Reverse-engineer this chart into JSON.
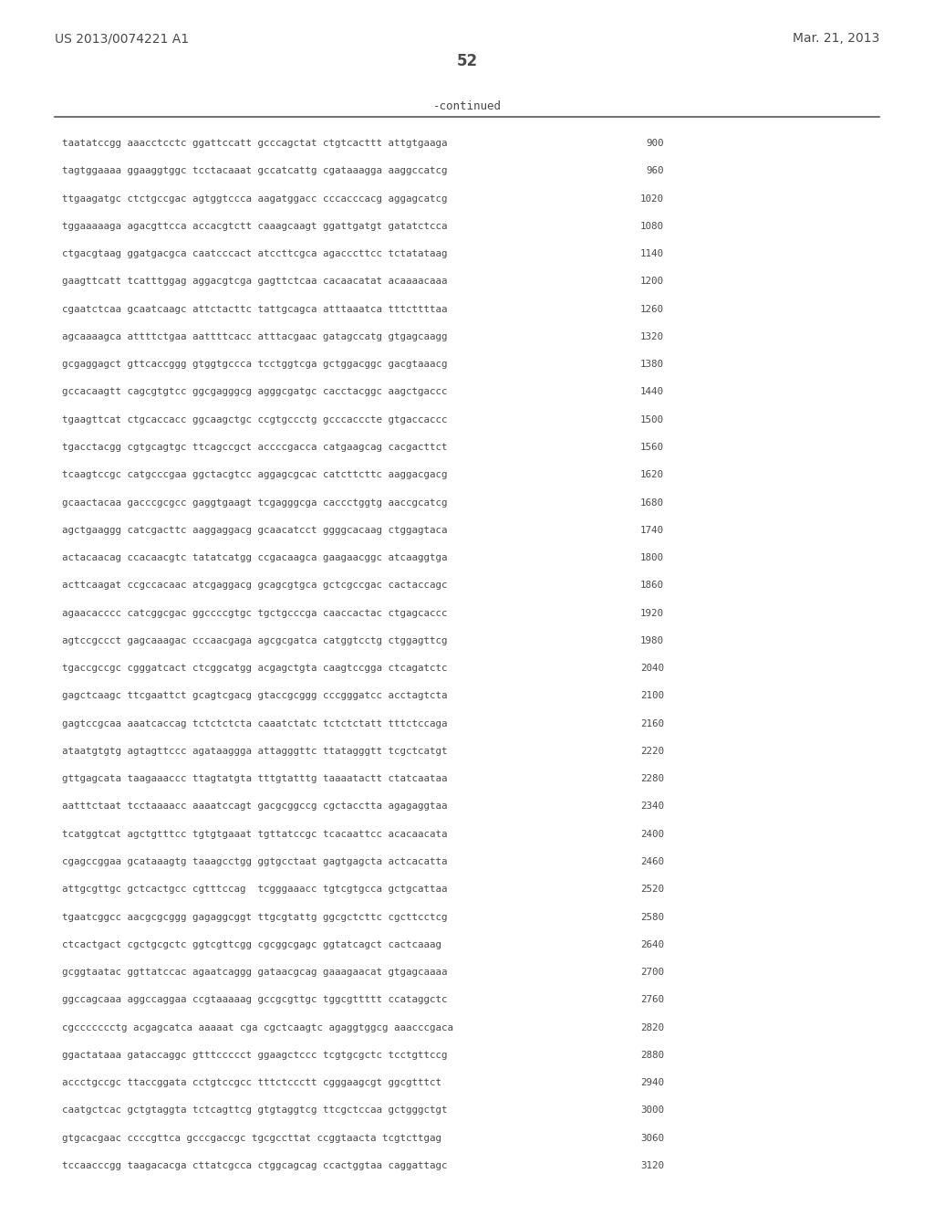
{
  "header_left": "US 2013/0074221 A1",
  "header_right": "Mar. 21, 2013",
  "page_number": "52",
  "continued_label": "-continued",
  "background_color": "#ffffff",
  "text_color": "#4a4a4a",
  "lines": [
    {
      "seq": "taatatccgg aaacctcctc ggattccatt gcccagctat ctgtcacttt attgtgaaga",
      "num": "900"
    },
    {
      "seq": "tagtggaaaa ggaaggtggc tcctacaaat gccatcattg cgataaagga aaggccatcg",
      "num": "960"
    },
    {
      "seq": "ttgaagatgc ctctgccgac agtggtccca aagatggacc cccacccacg aggagcatcg",
      "num": "1020"
    },
    {
      "seq": "tggaaaaaga agacgttcca accacgtctt caaagcaagt ggattgatgt gatatctcca",
      "num": "1080"
    },
    {
      "seq": "ctgacgtaag ggatgacgca caatcccact atccttcgca agacccttcc tctatataag",
      "num": "1140"
    },
    {
      "seq": "gaagttcatt tcatttggag aggacgtcga gagttctcaa cacaacatat acaaaacaaa",
      "num": "1200"
    },
    {
      "seq": "cgaatctcaa gcaatcaagc attctacttc tattgcagca atttaaatca tttcttttaa",
      "num": "1260"
    },
    {
      "seq": "agcaaaagca attttctgaa aattttcacc atttacgaac gatagccatg gtgagcaagg",
      "num": "1320"
    },
    {
      "seq": "gcgaggagct gttcaccggg gtggtgccca tcctggtcga gctggacggc gacgtaaacg",
      "num": "1380"
    },
    {
      "seq": "gccacaagtt cagcgtgtcc ggcgagggcg agggcgatgc cacctacggc aagctgaccc",
      "num": "1440"
    },
    {
      "seq": "tgaagttcat ctgcaccacc ggcaagctgc ccgtgccctg gcccacccte gtgaccaccc",
      "num": "1500"
    },
    {
      "seq": "tgacctacgg cgtgcagtgc ttcagccgct accccgacca catgaagcag cacgacttct",
      "num": "1560"
    },
    {
      "seq": "tcaagtccgc catgcccgaa ggctacgtcc aggagcgcac catcttcttc aaggacgacg",
      "num": "1620"
    },
    {
      "seq": "gcaactacaa gacccgcgcc gaggtgaagt tcgagggcga caccctggtg aaccgcatcg",
      "num": "1680"
    },
    {
      "seq": "agctgaaggg catcgacttc aaggaggacg gcaacatcct ggggcacaag ctggagtaca",
      "num": "1740"
    },
    {
      "seq": "actacaacag ccacaacgtc tatatcatgg ccgacaagca gaagaacggc atcaaggtga",
      "num": "1800"
    },
    {
      "seq": "acttcaagat ccgccacaac atcgaggacg gcagcgtgca gctcgccgac cactaccagc",
      "num": "1860"
    },
    {
      "seq": "agaacacccc catcggcgac ggccccgtgc tgctgcccga caaccactac ctgagcaccc",
      "num": "1920"
    },
    {
      "seq": "agtccgccct gagcaaagac cccaacgaga agcgcgatca catggtcctg ctggagttcg",
      "num": "1980"
    },
    {
      "seq": "tgaccgccgc cgggatcact ctcggcatgg acgagctgta caagtccgga ctcagatctc",
      "num": "2040"
    },
    {
      "seq": "gagctcaagc ttcgaattct gcagtcgacg gtaccgcggg cccgggatcc acctagtcta",
      "num": "2100"
    },
    {
      "seq": "gagtccgcaa aaatcaccag tctctctcta caaatctatc tctctctatt tttctccaga",
      "num": "2160"
    },
    {
      "seq": "ataatgtgtg agtagttccc agataaggga attagggttc ttatagggtt tcgctcatgt",
      "num": "2220"
    },
    {
      "seq": "gttgagcata taagaaaccc ttagtatgta tttgtatttg taaaatactt ctatcaataa",
      "num": "2280"
    },
    {
      "seq": "aatttctaat tcctaaaacc aaaatccagt gacgcggccg cgctacctta agagaggtaa",
      "num": "2340"
    },
    {
      "seq": "tcatggtcat agctgtttcc tgtgtgaaat tgttatccgc tcacaattcc acacaacata",
      "num": "2400"
    },
    {
      "seq": "cgagccggaa gcataaagtg taaagcctgg ggtgcctaat gagtgagcta actcacatta",
      "num": "2460"
    },
    {
      "seq": "attgcgttgc gctcactgcc cgtttccag  tcgggaaacc tgtcgtgcca gctgcattaa",
      "num": "2520"
    },
    {
      "seq": "tgaatcggcc aacgcgcggg gagaggcggt ttgcgtattg ggcgctcttc cgcttcctcg",
      "num": "2580"
    },
    {
      "seq": "ctcactgact cgctgcgctc ggtcgttcgg cgcggcgagc ggtatcagct cactcaaag",
      "num": "2640"
    },
    {
      "seq": "gcggtaatac ggttatccac agaatcaggg gataacgcag gaaagaacat gtgagcaaaa",
      "num": "2700"
    },
    {
      "seq": "ggccagcaaa aggccaggaa ccgtaaaaag gccgcgttgc tggcgttttt ccataggctc",
      "num": "2760"
    },
    {
      "seq": "cgccccccctg acgagcatca aaaaat cga cgctcaagtc agaggtggcg aaacccgaca",
      "num": "2820"
    },
    {
      "seq": "ggactataaa gataccaggc gtttccccct ggaagctccc tcgtgcgctc tcctgttccg",
      "num": "2880"
    },
    {
      "seq": "accctgccgc ttaccggata cctgtccgcc tttctccctt cgggaagcgt ggcgtttct",
      "num": "2940"
    },
    {
      "seq": "caatgctcac gctgtaggta tctcagttcg gtgtaggtcg ttcgctccaa gctgggctgt",
      "num": "3000"
    },
    {
      "seq": "gtgcacgaac ccccgttca gcccgaccgc tgcgccttat ccggtaacta tcgtcttgag",
      "num": "3060"
    },
    {
      "seq": "tccaacccgg taagacacga cttatcgcca ctggcagcag ccactggtaa caggattagc",
      "num": "3120"
    }
  ]
}
